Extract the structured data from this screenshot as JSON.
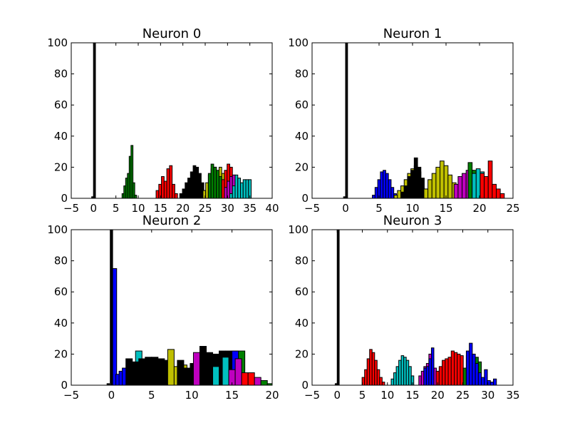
{
  "chart_data": [
    {
      "type": "bar",
      "title": "Neuron 0",
      "xlim": [
        -5,
        40
      ],
      "ylim": [
        0,
        100
      ],
      "xticks": [
        -5,
        0,
        5,
        10,
        15,
        20,
        25,
        30,
        35,
        40
      ],
      "yticks": [
        0,
        20,
        40,
        60,
        80,
        100
      ],
      "series": [
        {
          "color": "#000000",
          "bin_width": 0.45,
          "x": [
            -0.2,
            0.2
          ],
          "values": [
            1,
            100
          ]
        },
        {
          "color": "#008000",
          "bin_width": 0.45,
          "x": [
            6.6,
            7.0,
            7.4,
            7.8,
            8.2,
            8.6,
            9.0,
            9.4
          ],
          "values": [
            3,
            8,
            13,
            16,
            27,
            34,
            10,
            2
          ]
        },
        {
          "color": "#ff0000",
          "bin_width": 0.6,
          "x": [
            14.3,
            14.9,
            15.5,
            16.1,
            16.7,
            17.3,
            17.9,
            18.5
          ],
          "values": [
            5,
            9,
            14,
            11,
            19,
            21,
            9,
            3
          ]
        },
        {
          "color": "#0000ff",
          "bin_width": 0.6,
          "x": [
            21.0,
            21.6,
            22.2,
            22.8,
            23.4
          ],
          "values": [
            3,
            8,
            12,
            10,
            6
          ]
        },
        {
          "color": "#000000",
          "bin_width": 0.6,
          "x": [
            19.6,
            20.2,
            20.8,
            21.4,
            22.0,
            22.6,
            23.2,
            23.8,
            24.4,
            25.0
          ],
          "values": [
            3,
            6,
            10,
            13,
            17,
            21,
            20,
            16,
            10,
            5
          ]
        },
        {
          "color": "#bfbf00",
          "bin_width": 0.6,
          "x": [
            24.8,
            25.4,
            26.0,
            26.6,
            27.2,
            27.8,
            28.4,
            29.0,
            29.6,
            30.2
          ],
          "values": [
            5,
            10,
            15,
            19,
            20,
            17,
            20,
            16,
            13,
            6
          ]
        },
        {
          "color": "#008000",
          "bin_width": 0.6,
          "x": [
            26.0,
            26.6,
            27.2,
            27.8,
            28.4
          ],
          "values": [
            16,
            22,
            20,
            18,
            14
          ]
        },
        {
          "color": "#ff0000",
          "bin_width": 0.6,
          "x": [
            29.0,
            29.6,
            30.2,
            30.8,
            31.4
          ],
          "values": [
            12,
            18,
            22,
            20,
            14
          ]
        },
        {
          "color": "#bf00bf",
          "bin_width": 0.6,
          "x": [
            29.6,
            30.2,
            30.8,
            31.4,
            32.0,
            32.6,
            33.2,
            33.8
          ],
          "values": [
            7,
            11,
            14,
            15,
            13,
            9,
            6,
            3
          ]
        },
        {
          "color": "#00bfbf",
          "bin_width": 0.6,
          "x": [
            30.8,
            31.4,
            32.0,
            32.6,
            33.2,
            33.8,
            34.4,
            35.0
          ],
          "values": [
            3,
            8,
            15,
            13,
            10,
            12,
            12,
            12
          ]
        }
      ]
    },
    {
      "type": "bar",
      "title": "Neuron 1",
      "xlim": [
        -5,
        25
      ],
      "ylim": [
        0,
        100
      ],
      "xticks": [
        -5,
        0,
        5,
        10,
        15,
        20,
        25
      ],
      "yticks": [
        0,
        20,
        40,
        60,
        80,
        100
      ],
      "series": [
        {
          "color": "#000000",
          "bin_width": 0.3,
          "x": [
            -0.15,
            0.15
          ],
          "values": [
            1,
            100
          ]
        },
        {
          "color": "#0000ff",
          "bin_width": 0.4,
          "x": [
            4.2,
            4.6,
            5.0,
            5.4,
            5.8,
            6.2,
            6.6,
            7.0,
            7.4
          ],
          "values": [
            2,
            7,
            12,
            17,
            18,
            16,
            12,
            7,
            3
          ]
        },
        {
          "color": "#bfbf00",
          "bin_width": 0.5,
          "x": [
            7.5,
            8.0,
            8.5,
            9.0,
            9.5,
            10.0,
            10.5,
            11.0
          ],
          "values": [
            2,
            5,
            8,
            12,
            16,
            19,
            21,
            17
          ]
        },
        {
          "color": "#000000",
          "bin_width": 0.5,
          "x": [
            8.5,
            9.0,
            9.5,
            10.0,
            10.5,
            11.0,
            11.5,
            12.0
          ],
          "values": [
            4,
            8,
            14,
            18,
            26,
            20,
            13,
            6
          ]
        },
        {
          "color": "#bfbf00",
          "bin_width": 0.6,
          "x": [
            12.0,
            12.6,
            13.2,
            13.8,
            14.4,
            15.0,
            15.6,
            16.2,
            16.8
          ],
          "values": [
            6,
            12,
            16,
            20,
            24,
            21,
            15,
            10,
            5
          ]
        },
        {
          "color": "#bf00bf",
          "bin_width": 0.6,
          "x": [
            16.5,
            17.1,
            17.7,
            18.3,
            18.9,
            19.5,
            20.1
          ],
          "values": [
            9,
            14,
            16,
            18,
            18,
            14,
            8
          ]
        },
        {
          "color": "#008000",
          "bin_width": 0.6,
          "x": [
            18.6,
            19.2,
            19.8,
            20.4
          ],
          "values": [
            23,
            18,
            14,
            10
          ]
        },
        {
          "color": "#00bfbf",
          "bin_width": 0.6,
          "x": [
            19.2,
            19.8,
            20.4,
            21.0,
            21.6
          ],
          "values": [
            16,
            19,
            17,
            12,
            8
          ]
        },
        {
          "color": "#ff0000",
          "bin_width": 0.6,
          "x": [
            20.4,
            21.0,
            21.6,
            22.2,
            22.8,
            23.4
          ],
          "values": [
            16,
            14,
            24,
            9,
            6,
            3
          ]
        }
      ]
    },
    {
      "type": "bar",
      "title": "Neuron 2",
      "xlim": [
        -5,
        20
      ],
      "ylim": [
        0,
        100
      ],
      "xticks": [
        -5,
        0,
        5,
        10,
        15,
        20
      ],
      "yticks": [
        0,
        20,
        40,
        60,
        80,
        100
      ],
      "series": [
        {
          "color": "#000000",
          "bin_width": 0.3,
          "x": [
            -0.4,
            0.0
          ],
          "values": [
            1,
            100
          ]
        },
        {
          "color": "#0000ff",
          "bin_width": 0.5,
          "x": [
            0.4,
            0.8,
            1.2,
            1.6
          ],
          "values": [
            75,
            7,
            9,
            11
          ]
        },
        {
          "color": "#00bfbf",
          "bin_width": 0.8,
          "x": [
            3.4
          ],
          "values": [
            22
          ]
        },
        {
          "color": "#000000",
          "bin_width": 0.8,
          "x": [
            2.2,
            3.0,
            3.8,
            4.6,
            5.4,
            6.2,
            7.0
          ],
          "values": [
            17,
            15,
            17,
            18,
            18,
            17,
            16
          ]
        },
        {
          "color": "#bfbf00",
          "bin_width": 0.8,
          "x": [
            7.4,
            8.2,
            9.0,
            9.8
          ],
          "values": [
            23,
            12,
            13,
            11
          ]
        },
        {
          "color": "#000000",
          "bin_width": 0.8,
          "x": [
            8.6,
            9.4,
            10.2
          ],
          "values": [
            16,
            11,
            14
          ]
        },
        {
          "color": "#bf00bf",
          "bin_width": 0.8,
          "x": [
            10.6,
            11.4,
            12.2
          ],
          "values": [
            21,
            17,
            20
          ]
        },
        {
          "color": "#000000",
          "bin_width": 0.8,
          "x": [
            11.4,
            12.2,
            13.0,
            13.8,
            14.6,
            15.4
          ],
          "values": [
            25,
            21,
            20,
            22,
            22,
            22
          ]
        },
        {
          "color": "#00bfbf",
          "bin_width": 0.8,
          "x": [
            13.0,
            14.2
          ],
          "values": [
            12,
            18
          ]
        },
        {
          "color": "#0000ff",
          "bin_width": 0.8,
          "x": [
            15.4
          ],
          "values": [
            22
          ]
        },
        {
          "color": "#008000",
          "bin_width": 0.8,
          "x": [
            16.2
          ],
          "values": [
            22
          ]
        },
        {
          "color": "#bf00bf",
          "bin_width": 0.8,
          "x": [
            15.0,
            15.8
          ],
          "values": [
            10,
            17
          ]
        },
        {
          "color": "#ff0000",
          "bin_width": 0.8,
          "x": [
            16.6,
            17.4
          ],
          "values": [
            8,
            8
          ]
        },
        {
          "color": "#bf00bf",
          "bin_width": 0.8,
          "x": [
            18.2
          ],
          "values": [
            5
          ]
        },
        {
          "color": "#008000",
          "bin_width": 0.8,
          "x": [
            19.0,
            19.8
          ],
          "values": [
            3,
            1
          ]
        }
      ]
    },
    {
      "type": "bar",
      "title": "Neuron 3",
      "xlim": [
        -5,
        35
      ],
      "ylim": [
        0,
        100
      ],
      "xticks": [
        -5,
        0,
        5,
        10,
        15,
        20,
        25,
        30,
        35
      ],
      "yticks": [
        0,
        20,
        40,
        60,
        80,
        100
      ],
      "series": [
        {
          "color": "#000000",
          "bin_width": 0.4,
          "x": [
            -0.2,
            0.2
          ],
          "values": [
            1,
            100
          ]
        },
        {
          "color": "#ff0000",
          "bin_width": 0.5,
          "x": [
            5.2,
            5.7,
            6.2,
            6.7,
            7.2,
            7.7,
            8.2,
            8.7,
            9.2
          ],
          "values": [
            5,
            10,
            17,
            23,
            21,
            16,
            10,
            5,
            2
          ]
        },
        {
          "color": "#00bfbf",
          "bin_width": 0.5,
          "x": [
            11.0,
            11.5,
            12.0,
            12.5,
            13.0,
            13.5,
            14.0,
            14.5,
            15.0
          ],
          "values": [
            4,
            8,
            12,
            16,
            19,
            18,
            16,
            12,
            6
          ]
        },
        {
          "color": "#bf00bf",
          "bin_width": 0.5,
          "x": [
            16.5,
            17.0,
            17.5,
            18.0,
            18.5,
            19.0,
            19.5
          ],
          "values": [
            6,
            9,
            12,
            14,
            20,
            17,
            11
          ]
        },
        {
          "color": "#0000ff",
          "bin_width": 0.5,
          "x": [
            17.5,
            18.0,
            18.5,
            19.0
          ],
          "values": [
            11,
            12,
            17,
            24
          ]
        },
        {
          "color": "#ff0000",
          "bin_width": 0.6,
          "x": [
            20.0,
            20.6,
            21.2,
            21.8,
            22.4,
            23.0,
            23.6,
            24.2,
            24.8
          ],
          "values": [
            9,
            12,
            16,
            17,
            18,
            22,
            21,
            20,
            19
          ]
        },
        {
          "color": "#008000",
          "bin_width": 0.6,
          "x": [
            25.4,
            26.0,
            26.6,
            27.2,
            27.8,
            28.4
          ],
          "values": [
            11,
            19,
            14,
            16,
            18,
            15
          ]
        },
        {
          "color": "#0000ff",
          "bin_width": 0.6,
          "x": [
            26.0,
            26.6,
            27.2,
            27.8,
            28.4,
            29.0,
            29.6,
            30.2,
            30.8,
            31.4
          ],
          "values": [
            22,
            27,
            20,
            14,
            8,
            5,
            10,
            3,
            2,
            4
          ]
        }
      ]
    }
  ]
}
